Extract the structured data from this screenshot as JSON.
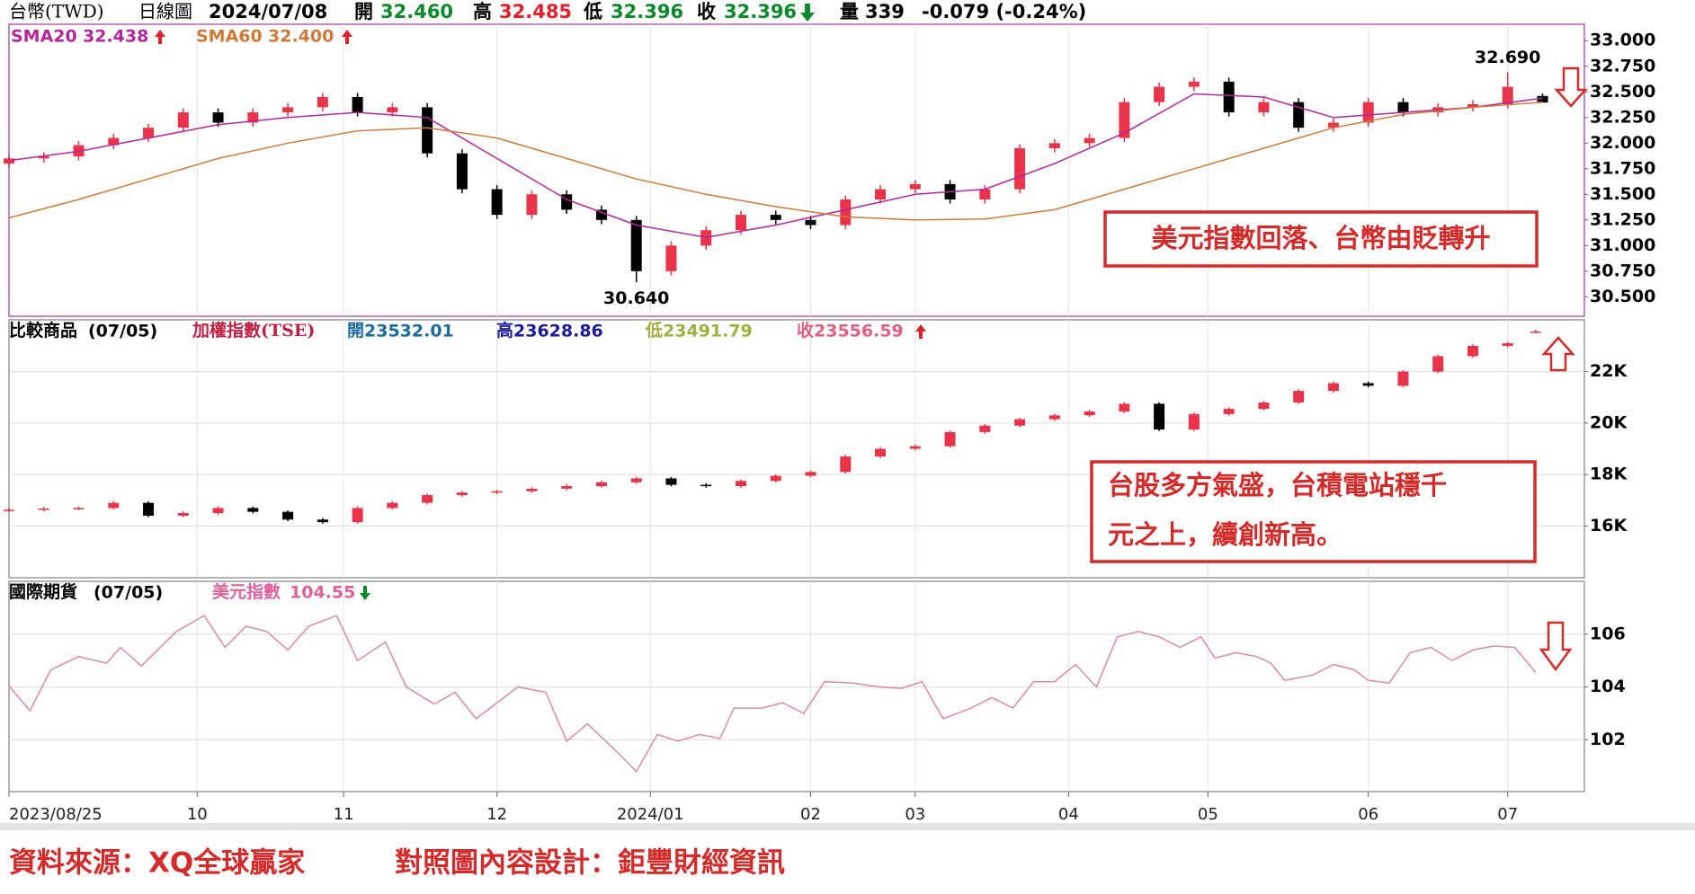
{
  "header": {
    "symbol": "台幣(TWD)",
    "period": "日線圖",
    "date": "2024/07/08",
    "fields": [
      {
        "label": "開",
        "value": "32.460"
      },
      {
        "label": "高",
        "value": "32.485"
      },
      {
        "label": "低",
        "value": "32.396"
      },
      {
        "label": "收",
        "value": "32.396"
      },
      {
        "label": "量",
        "value": "339"
      }
    ],
    "change": "-0.079 (-0.24%)"
  },
  "chart_data": [
    {
      "type": "candlestick",
      "xlim": [
        0,
        226
      ],
      "ylim": [
        30.31,
        33.16
      ],
      "yticks": [
        {
          "value": 33,
          "label": "33.000"
        },
        {
          "value": 32.75,
          "label": "32.750"
        },
        {
          "value": 32.5,
          "label": "32.500"
        },
        {
          "value": 32.25,
          "label": "32.250"
        },
        {
          "value": 32,
          "label": "32.000"
        },
        {
          "value": 31.75,
          "label": "31.750"
        },
        {
          "value": 31.5,
          "label": "31.500"
        },
        {
          "value": 31.25,
          "label": "31.250"
        },
        {
          "value": 31,
          "label": "31.000"
        },
        {
          "value": 30.75,
          "label": "30.750"
        },
        {
          "value": 30.5,
          "label": "30.500"
        }
      ],
      "grid": false,
      "up_color": "#e8334a",
      "down_color": "#000000",
      "x": [
        0,
        5,
        10,
        15,
        20,
        25,
        30,
        35,
        40,
        45,
        50,
        55,
        60,
        65,
        70,
        75,
        80,
        85,
        90,
        95,
        100,
        105,
        110,
        115,
        120,
        125,
        130,
        135,
        140,
        145,
        150,
        155,
        160,
        165,
        170,
        175,
        180,
        185,
        190,
        195,
        200,
        205,
        210,
        215,
        220
      ],
      "open": [
        31.8,
        31.85,
        31.87,
        31.98,
        32.05,
        32.15,
        32.3,
        32.2,
        32.3,
        32.35,
        32.45,
        32.3,
        32.35,
        31.9,
        31.55,
        31.3,
        31.5,
        31.35,
        31.25,
        30.75,
        31.0,
        31.15,
        31.3,
        31.25,
        31.2,
        31.45,
        31.55,
        31.6,
        31.45,
        31.55,
        31.95,
        32.0,
        32.05,
        32.4,
        32.55,
        32.6,
        32.3,
        32.4,
        32.15,
        32.2,
        32.4,
        32.3,
        32.35,
        32.38,
        32.46
      ],
      "high": [
        31.89,
        31.91,
        32.02,
        32.09,
        32.19,
        32.34,
        32.34,
        32.34,
        32.39,
        32.49,
        32.49,
        32.39,
        32.39,
        31.94,
        31.59,
        31.54,
        31.54,
        31.39,
        31.29,
        31.04,
        31.19,
        31.34,
        31.34,
        31.29,
        31.49,
        31.59,
        31.64,
        31.64,
        31.59,
        31.99,
        32.04,
        32.09,
        32.44,
        32.59,
        32.64,
        32.64,
        32.44,
        32.44,
        32.24,
        32.44,
        32.44,
        32.39,
        32.42,
        32.69,
        32.485
      ],
      "low": [
        31.76,
        31.81,
        31.83,
        31.94,
        32.01,
        32.11,
        32.16,
        32.16,
        32.26,
        32.31,
        32.26,
        32.26,
        31.86,
        31.51,
        31.26,
        31.26,
        31.31,
        31.21,
        30.64,
        30.71,
        30.96,
        31.11,
        31.21,
        31.16,
        31.16,
        31.41,
        31.51,
        31.41,
        31.41,
        31.51,
        31.91,
        31.96,
        32.01,
        32.36,
        32.51,
        32.26,
        32.26,
        32.11,
        32.11,
        32.16,
        32.26,
        32.26,
        32.31,
        32.34,
        32.396
      ],
      "close": [
        31.85,
        31.87,
        31.98,
        32.05,
        32.15,
        32.3,
        32.2,
        32.3,
        32.35,
        32.45,
        32.3,
        32.35,
        31.9,
        31.55,
        31.3,
        31.5,
        31.35,
        31.25,
        30.75,
        31.0,
        31.15,
        31.3,
        31.25,
        31.2,
        31.45,
        31.55,
        31.6,
        31.45,
        31.55,
        31.95,
        32.0,
        32.05,
        32.4,
        32.55,
        32.6,
        32.3,
        32.4,
        32.15,
        32.2,
        32.4,
        32.3,
        32.35,
        32.38,
        32.55,
        32.396
      ],
      "series": [
        {
          "name": "SMA20",
          "color": "#b5269c",
          "x": [
            0,
            10,
            20,
            30,
            40,
            50,
            60,
            70,
            80,
            90,
            100,
            110,
            120,
            130,
            140,
            150,
            160,
            170,
            180,
            190,
            200,
            210,
            220
          ],
          "values": [
            31.83,
            31.92,
            32.05,
            32.18,
            32.25,
            32.3,
            32.25,
            31.85,
            31.45,
            31.2,
            31.08,
            31.2,
            31.35,
            31.5,
            31.55,
            31.8,
            32.1,
            32.48,
            32.45,
            32.25,
            32.3,
            32.35,
            32.438
          ]
        },
        {
          "name": "SMA60",
          "color": "#d07a3a",
          "x": [
            0,
            10,
            20,
            30,
            40,
            50,
            60,
            70,
            80,
            90,
            100,
            110,
            120,
            130,
            140,
            150,
            160,
            170,
            180,
            190,
            200,
            210,
            220
          ],
          "values": [
            31.27,
            31.45,
            31.65,
            31.85,
            32.0,
            32.12,
            32.15,
            32.05,
            31.85,
            31.65,
            31.5,
            31.38,
            31.28,
            31.25,
            31.26,
            31.35,
            31.55,
            31.75,
            31.95,
            32.15,
            32.28,
            32.35,
            32.4
          ]
        }
      ],
      "legend_values": [
        "32.438",
        "32.400"
      ],
      "annotations": [
        {
          "x": 90,
          "value": 30.64,
          "label": "30.640"
        },
        {
          "x": 215,
          "value": 32.69,
          "label": "32.690"
        }
      ],
      "callout": [
        "美元指數回落、台幣由貶轉升"
      ]
    },
    {
      "type": "candlestick",
      "title": "比較商品",
      "date": "(07/05)",
      "name": "加權指數(TSE)",
      "quote_labels": [
        "開",
        "高",
        "低",
        "收"
      ],
      "xlim": [
        0,
        226
      ],
      "ylim": [
        13990,
        24010
      ],
      "yticks": [
        {
          "value": 16000,
          "label": "16K"
        },
        {
          "value": 18000,
          "label": "18K"
        },
        {
          "value": 20000,
          "label": "20K"
        },
        {
          "value": 22000,
          "label": "22K"
        }
      ],
      "grid": true,
      "up_color": "#e8334a",
      "down_color": "#000000",
      "x": [
        0,
        5,
        10,
        15,
        20,
        25,
        30,
        35,
        40,
        45,
        50,
        55,
        60,
        65,
        70,
        75,
        80,
        85,
        90,
        95,
        100,
        105,
        110,
        115,
        120,
        125,
        130,
        135,
        140,
        145,
        150,
        155,
        160,
        165,
        170,
        175,
        180,
        185,
        190,
        195,
        200,
        205,
        210,
        215,
        219
      ],
      "open": [
        16600,
        16630,
        16680,
        16700,
        16900,
        16400,
        16500,
        16700,
        16550,
        16250,
        16150,
        16700,
        16900,
        17200,
        17300,
        17350,
        17450,
        17550,
        17700,
        17850,
        17600,
        17550,
        17750,
        17950,
        18100,
        18700,
        19000,
        19100,
        19650,
        19900,
        20150,
        20300,
        20450,
        20750,
        19750,
        20350,
        20550,
        20800,
        21250,
        21550,
        21450,
        22000,
        22600,
        23000,
        23532.01
      ],
      "high": [
        16690,
        16740,
        16760,
        16960,
        16960,
        16560,
        16760,
        16760,
        16610,
        16310,
        16760,
        16960,
        17260,
        17360,
        17410,
        17510,
        17610,
        17760,
        17910,
        17910,
        17660,
        17810,
        18010,
        18160,
        18760,
        19060,
        19160,
        19710,
        19960,
        20210,
        20360,
        20510,
        20810,
        20810,
        20410,
        20610,
        20860,
        21310,
        21610,
        21610,
        22060,
        22660,
        23060,
        23160,
        23628.86
      ],
      "low": [
        16540,
        16570,
        16620,
        16640,
        16340,
        16340,
        16440,
        16490,
        16190,
        16090,
        16090,
        16640,
        16840,
        17140,
        17240,
        17290,
        17390,
        17490,
        17640,
        17540,
        17490,
        17490,
        17690,
        17890,
        18040,
        18640,
        18940,
        19040,
        19590,
        19840,
        20090,
        20240,
        20390,
        19690,
        19690,
        20290,
        20490,
        20740,
        21190,
        21390,
        21390,
        21940,
        22540,
        22940,
        23491.79
      ],
      "close": [
        16630,
        16680,
        16700,
        16900,
        16400,
        16500,
        16700,
        16550,
        16250,
        16150,
        16700,
        16900,
        17200,
        17300,
        17350,
        17450,
        17550,
        17700,
        17850,
        17600,
        17550,
        17750,
        17950,
        18100,
        18700,
        19000,
        19100,
        19650,
        19900,
        20150,
        20300,
        20450,
        20750,
        19750,
        20350,
        20550,
        20800,
        21250,
        21550,
        21450,
        22000,
        22600,
        23000,
        23100,
        23556.59
      ],
      "callout": [
        "台股多方氣盛，台積電站穩千",
        "元之上，續創新高。"
      ]
    },
    {
      "type": "line",
      "title": "國際期貨",
      "date": "(07/05)",
      "xlim": [
        0,
        226
      ],
      "ylim": [
        100.04,
        108
      ],
      "yticks": [
        102,
        104,
        106
      ],
      "grid": true,
      "series": [
        {
          "name": "美元指數",
          "color": "#d98aa6",
          "x": [
            0,
            3,
            6,
            10,
            14,
            16,
            19,
            24,
            28,
            31,
            34,
            37,
            40,
            43,
            47,
            50,
            54,
            57,
            61,
            64,
            67,
            70,
            73,
            77,
            80,
            83,
            87,
            90,
            93,
            96,
            99,
            102,
            104,
            108,
            111,
            114,
            117,
            121,
            125,
            128,
            131,
            134,
            138,
            141,
            144,
            147,
            150,
            153,
            156,
            159,
            162,
            165,
            168,
            171,
            173,
            176,
            179,
            181,
            183,
            187,
            190,
            193,
            195,
            198,
            201,
            204,
            207,
            210,
            213,
            216,
            219
          ],
          "values": [
            104.04,
            103.1,
            104.65,
            105.15,
            104.9,
            105.5,
            104.8,
            106.1,
            106.7,
            105.5,
            106.3,
            106.1,
            105.4,
            106.3,
            106.7,
            105.0,
            105.7,
            104.0,
            103.35,
            103.8,
            102.8,
            103.4,
            104.0,
            103.8,
            101.95,
            102.6,
            101.6,
            100.8,
            102.2,
            101.95,
            102.2,
            102.05,
            103.2,
            103.2,
            103.4,
            103.0,
            104.2,
            104.15,
            104.0,
            103.95,
            104.2,
            102.8,
            103.2,
            103.6,
            103.2,
            104.2,
            104.2,
            104.85,
            104.0,
            105.9,
            106.1,
            105.9,
            105.5,
            105.9,
            105.1,
            105.3,
            105.15,
            104.9,
            104.25,
            104.45,
            104.85,
            104.65,
            104.25,
            104.15,
            105.3,
            105.5,
            105.0,
            105.4,
            105.55,
            105.5,
            104.55
          ]
        }
      ],
      "xticks": [
        {
          "value": 0,
          "label": "2023/08/25"
        },
        {
          "value": 27,
          "label": "10"
        },
        {
          "value": 48,
          "label": "11"
        },
        {
          "value": 70,
          "label": "12"
        },
        {
          "value": 92,
          "label": "2024/01"
        },
        {
          "value": 115,
          "label": "02"
        },
        {
          "value": 130,
          "label": "03"
        },
        {
          "value": 152,
          "label": "04"
        },
        {
          "value": 172,
          "label": "05"
        },
        {
          "value": 195,
          "label": "06"
        },
        {
          "value": 215,
          "label": "07"
        }
      ]
    }
  ],
  "footer": [
    "資料來源：XQ全球贏家",
    "對照圖內容設計：鉅豐財經資訊"
  ]
}
